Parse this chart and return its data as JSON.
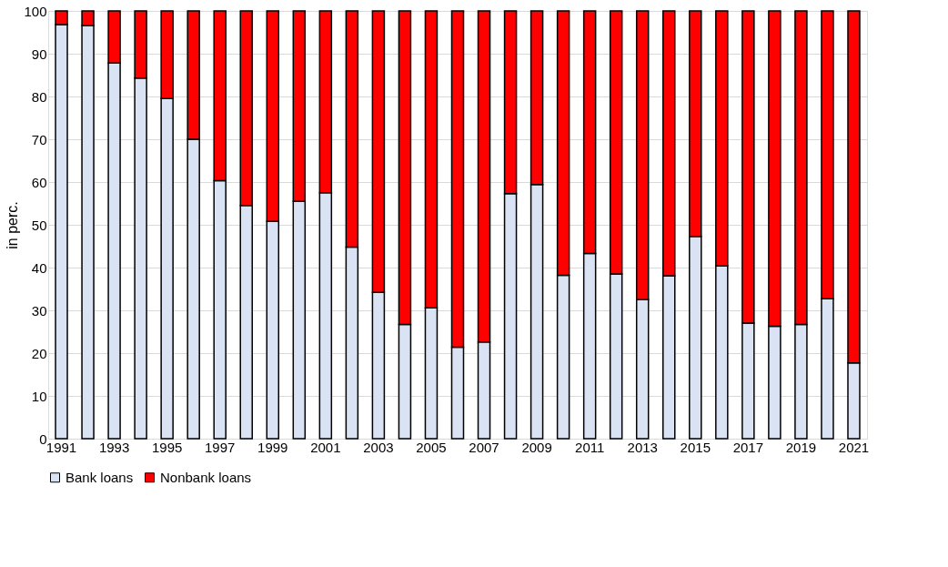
{
  "chart_data": {
    "type": "bar",
    "stacked": true,
    "ylabel": "in perc.",
    "categories": [
      "1991",
      null,
      "1993",
      null,
      "1995",
      null,
      "1997",
      null,
      "1999",
      null,
      "2001",
      null,
      "2003",
      null,
      "2005",
      null,
      "2007",
      null,
      "2009",
      null,
      "2011",
      null,
      "2013",
      null,
      "2015",
      null,
      "2017",
      null,
      "2019",
      null,
      "2021"
    ],
    "series": [
      {
        "name": "Bank loans",
        "color": "#dae3f3",
        "values": [
          96.8,
          96.6,
          87.8,
          84.3,
          79.5,
          70.0,
          60.3,
          54.5,
          50.8,
          55.5,
          57.5,
          44.8,
          34.2,
          26.7,
          30.6,
          21.4,
          22.6,
          57.3,
          59.4,
          38.2,
          43.3,
          38.5,
          32.5,
          38.1,
          47.3,
          40.4,
          27.0,
          26.3,
          26.7,
          32.7,
          17.7
        ]
      },
      {
        "name": "Nonbank loans",
        "color": "#ff0000",
        "values": [
          3.2,
          3.4,
          12.2,
          15.7,
          20.5,
          30.0,
          39.7,
          45.5,
          49.2,
          44.5,
          42.5,
          55.2,
          65.8,
          73.3,
          69.4,
          78.6,
          77.4,
          42.7,
          40.6,
          61.8,
          56.7,
          61.5,
          67.5,
          61.9,
          52.7,
          59.6,
          73.0,
          73.7,
          73.3,
          67.3,
          82.3
        ]
      }
    ],
    "ylim": [
      0,
      100
    ],
    "yticks": [
      0,
      10,
      20,
      30,
      40,
      50,
      60,
      70,
      80,
      90,
      100
    ],
    "grid": "y",
    "legend": "bottom"
  }
}
